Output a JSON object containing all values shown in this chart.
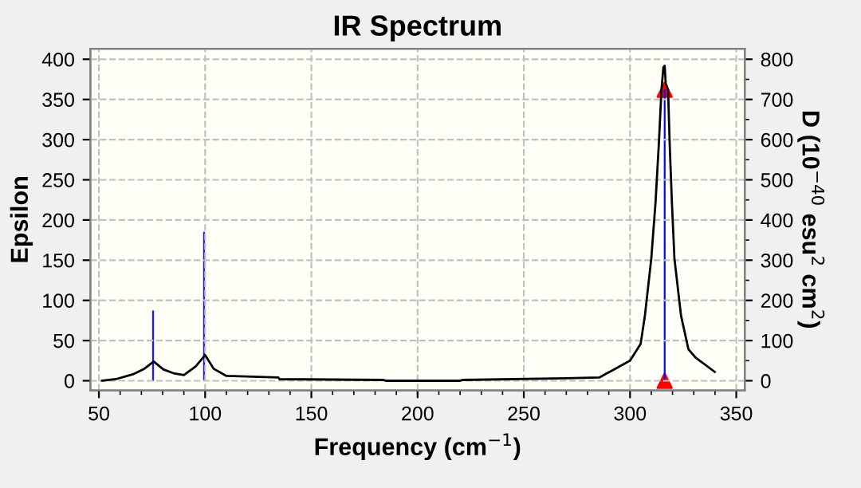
{
  "chart_data": {
    "type": "line",
    "title": "IR Spectrum",
    "xlabel": "Frequency (cm$^{−1}$)",
    "ylabel": "Epsilon",
    "y2label": "D (10$^{−40}$ esu$^{2}$ cm$^{2}$)",
    "xlim": [
      46,
      354
    ],
    "xticks": [
      50,
      100,
      150,
      200,
      250,
      300,
      350
    ],
    "ylim": [
      -12,
      413
    ],
    "yticks": [
      0,
      50,
      100,
      150,
      200,
      250,
      300,
      350,
      400
    ],
    "y2lim": [
      -24,
      826
    ],
    "y2ticks": [
      0,
      100,
      200,
      300,
      400,
      500,
      600,
      700,
      800
    ],
    "grid": true,
    "series": [
      {
        "color": "#000000",
        "line_style": "solid",
        "x": [
          51.5,
          58,
          66,
          71.4,
          75.8,
          80.4,
          85.6,
          90,
          95.6,
          100,
          104,
          110,
          134.5,
          135,
          184,
          185,
          220,
          221,
          270,
          285.5,
          300,
          305,
          307,
          310,
          312,
          313.5,
          314.8,
          315.7,
          316.3,
          316.8,
          317.9,
          318.7,
          319.7,
          320.9,
          324,
          327.5,
          330.8,
          339.9
        ],
        "values": [
          0,
          2,
          8,
          15,
          24,
          14,
          9,
          7,
          18,
          32,
          15,
          6,
          4,
          2,
          1,
          0,
          0,
          1,
          3,
          4,
          25,
          46,
          81,
          152,
          222,
          292,
          362,
          390,
          392,
          370,
          362,
          292,
          222,
          152,
          81,
          39,
          29,
          11
        ]
      },
      {
        "type": "bar",
        "axis": "y2",
        "color": "#0000ff",
        "x": [
          75.5,
          99.5,
          316.3
        ],
        "values": [
          174,
          370,
          724
        ]
      },
      {
        "type": "scatter",
        "axis": "y2",
        "color": "#ff0000",
        "marker": "triangle",
        "x": [
          316.3,
          316.3
        ],
        "values": [
          724,
          0
        ]
      }
    ]
  }
}
